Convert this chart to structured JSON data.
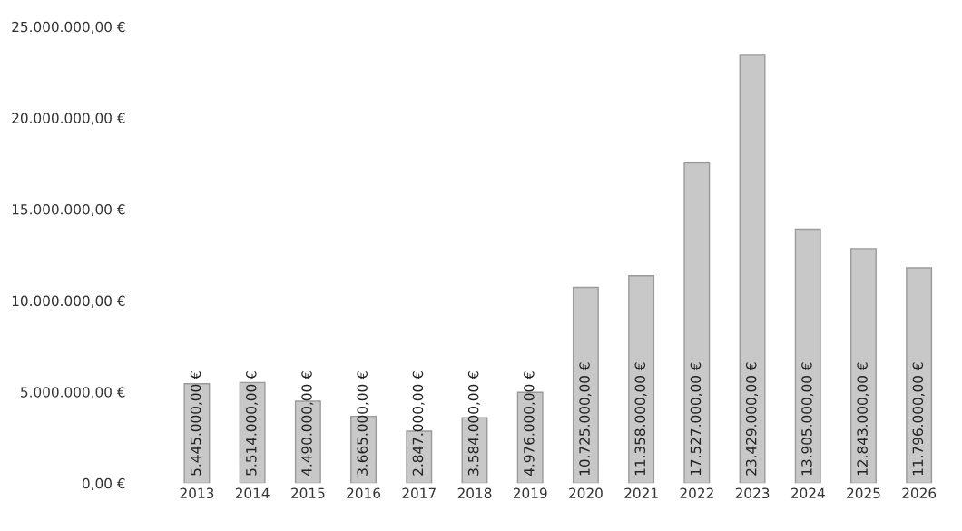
{
  "chart_data": {
    "type": "bar",
    "categories": [
      "2013",
      "2014",
      "2015",
      "2016",
      "2017",
      "2018",
      "2019",
      "2020",
      "2021",
      "2022",
      "2023",
      "2024",
      "2025",
      "2026"
    ],
    "values": [
      5445000,
      5514000,
      4490000,
      3665000,
      2847000,
      3584000,
      4976000,
      10725000,
      11358000,
      17527000,
      23429000,
      13905000,
      12843000,
      11796000
    ],
    "value_labels": [
      "5.445.000,00 €",
      "5.514.000,00 €",
      "4.490.000,00 €",
      "3.665.000,00 €",
      "2.847.000,00 €",
      "3.584.000,00 €",
      "4.976.000,00 €",
      "10.725.000,00 €",
      "11.358.000,00 €",
      "17.527.000,00 €",
      "23.429.000,00 €",
      "13.905.000,00 €",
      "12.843.000,00 €",
      "11.796.000,00 €"
    ],
    "color": "#c8c8c8",
    "ylim": [
      0,
      25000000
    ],
    "yticks": [
      {
        "value": 0,
        "label": "0,00 €"
      },
      {
        "value": 5000000,
        "label": "5.000.000,00 €"
      },
      {
        "value": 10000000,
        "label": "10.000.000,00 €"
      },
      {
        "value": 15000000,
        "label": "15.000.000,00 €"
      },
      {
        "value": 20000000,
        "label": "20.000.000,00 €"
      },
      {
        "value": 25000000,
        "label": "25.000.000,00 €"
      }
    ],
    "grid": false
  }
}
